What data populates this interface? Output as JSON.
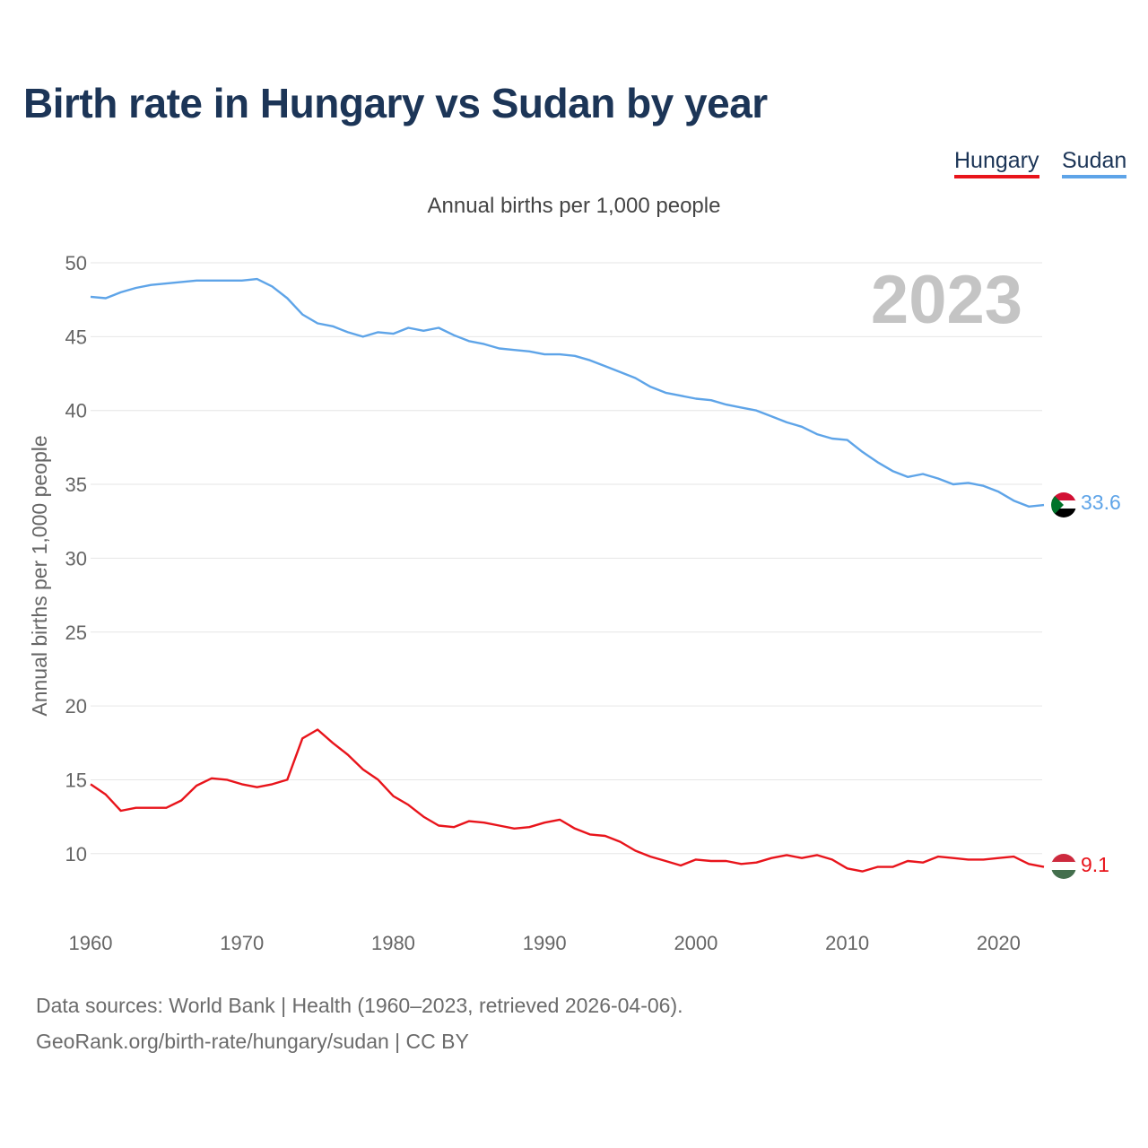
{
  "title": "Birth rate in Hungary vs Sudan by year",
  "footer": {
    "line1": "Data sources: World Bank | Health (1960–2023, retrieved 2026-04-06).",
    "line2": "GeoRank.org/birth-rate/hungary/sudan | CC BY"
  },
  "chart_data": {
    "type": "line",
    "title": "Birth rate in Hungary vs Sudan by year",
    "subtitle": "Annual births per 1,000 people",
    "ylabel": "Annual births per 1,000 people",
    "xlabel": "",
    "year_label": "2023",
    "xlim": [
      1960,
      2023
    ],
    "ylim": [
      6,
      50
    ],
    "grid": true,
    "legend_position": "top-right",
    "x_ticks": [
      1960,
      1970,
      1980,
      1990,
      2000,
      2010,
      2020
    ],
    "y_ticks": [
      10,
      15,
      20,
      25,
      30,
      35,
      40,
      45,
      50
    ],
    "x": [
      1960,
      1961,
      1962,
      1963,
      1964,
      1965,
      1966,
      1967,
      1968,
      1969,
      1970,
      1971,
      1972,
      1973,
      1974,
      1975,
      1976,
      1977,
      1978,
      1979,
      1980,
      1981,
      1982,
      1983,
      1984,
      1985,
      1986,
      1987,
      1988,
      1989,
      1990,
      1991,
      1992,
      1993,
      1994,
      1995,
      1996,
      1997,
      1998,
      1999,
      2000,
      2001,
      2002,
      2003,
      2004,
      2005,
      2006,
      2007,
      2008,
      2009,
      2010,
      2011,
      2012,
      2013,
      2014,
      2015,
      2016,
      2017,
      2018,
      2019,
      2020,
      2021,
      2022,
      2023
    ],
    "series": [
      {
        "name": "Hungary",
        "color": "#e8141b",
        "end_label": "9.1",
        "values": [
          14.7,
          14.0,
          12.9,
          13.1,
          13.1,
          13.1,
          13.6,
          14.6,
          15.1,
          15.0,
          14.7,
          14.5,
          14.7,
          15.0,
          17.8,
          18.4,
          17.5,
          16.7,
          15.7,
          15.0,
          13.9,
          13.3,
          12.5,
          11.9,
          11.8,
          12.2,
          12.1,
          11.9,
          11.7,
          11.8,
          12.1,
          12.3,
          11.7,
          11.3,
          11.2,
          10.8,
          10.2,
          9.8,
          9.5,
          9.2,
          9.6,
          9.5,
          9.5,
          9.3,
          9.4,
          9.7,
          9.9,
          9.7,
          9.9,
          9.6,
          9.0,
          8.8,
          9.1,
          9.1,
          9.5,
          9.4,
          9.8,
          9.7,
          9.6,
          9.6,
          9.7,
          9.8,
          9.3,
          9.1
        ]
      },
      {
        "name": "Sudan",
        "color": "#5ea4e8",
        "end_label": "33.6",
        "values": [
          47.7,
          47.6,
          48.0,
          48.3,
          48.5,
          48.6,
          48.7,
          48.8,
          48.8,
          48.8,
          48.8,
          48.9,
          48.4,
          47.6,
          46.5,
          45.9,
          45.7,
          45.3,
          45.0,
          45.3,
          45.2,
          45.6,
          45.4,
          45.6,
          45.1,
          44.7,
          44.5,
          44.2,
          44.1,
          44.0,
          43.8,
          43.8,
          43.7,
          43.4,
          43.0,
          42.6,
          42.2,
          41.6,
          41.2,
          41.0,
          40.8,
          40.7,
          40.4,
          40.2,
          40.0,
          39.6,
          39.2,
          38.9,
          38.4,
          38.1,
          38.0,
          37.2,
          36.5,
          35.9,
          35.5,
          35.7,
          35.4,
          35.0,
          35.1,
          34.9,
          34.5,
          33.9,
          33.5,
          33.6
        ]
      }
    ]
  }
}
